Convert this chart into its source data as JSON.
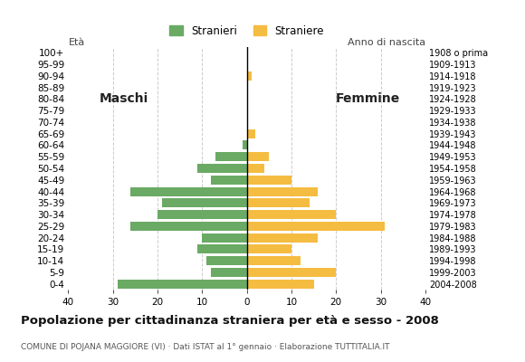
{
  "age_groups": [
    "100+",
    "95-99",
    "90-94",
    "85-89",
    "80-84",
    "75-79",
    "70-74",
    "65-69",
    "60-64",
    "55-59",
    "50-54",
    "45-49",
    "40-44",
    "35-39",
    "30-34",
    "25-29",
    "20-24",
    "15-19",
    "10-14",
    "5-9",
    "0-4"
  ],
  "birth_years": [
    "1908 o prima",
    "1909-1913",
    "1914-1918",
    "1919-1923",
    "1924-1928",
    "1929-1933",
    "1934-1938",
    "1939-1943",
    "1944-1948",
    "1949-1953",
    "1954-1958",
    "1959-1963",
    "1964-1968",
    "1969-1973",
    "1974-1978",
    "1979-1983",
    "1984-1988",
    "1989-1993",
    "1994-1998",
    "1999-2003",
    "2004-2008"
  ],
  "males": [
    0,
    0,
    0,
    0,
    0,
    0,
    0,
    0,
    1,
    7,
    11,
    8,
    26,
    19,
    20,
    26,
    10,
    11,
    9,
    8,
    29
  ],
  "females": [
    0,
    0,
    1,
    0,
    0,
    0,
    0,
    2,
    0,
    5,
    4,
    10,
    16,
    14,
    20,
    31,
    16,
    10,
    12,
    20,
    15
  ],
  "male_color": "#6aaa64",
  "female_color": "#f5bc42",
  "background_color": "#ffffff",
  "grid_color": "#cccccc",
  "title": "Popolazione per cittadinanza straniera per età e sesso - 2008",
  "subtitle": "COMUNE DI POJANA MAGGIORE (VI) · Dati ISTAT al 1° gennaio · Elaborazione TUTTITALIA.IT",
  "legend_male": "Stranieri",
  "legend_female": "Straniere",
  "xlim": 40,
  "label_males": "Maschi",
  "label_females": "Femmine",
  "eta_label": "Età",
  "anno_label": "Anno di nascita"
}
